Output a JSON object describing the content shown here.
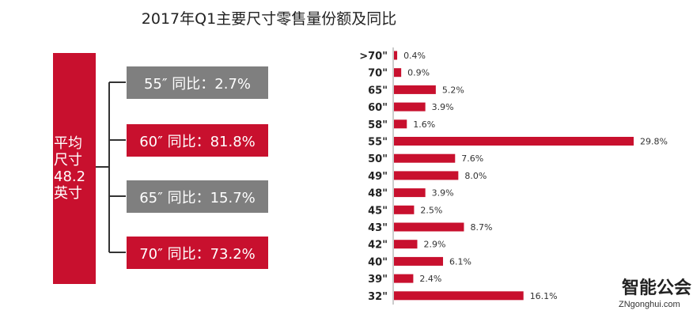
{
  "title": "2017年Q1主要尺寸零售量份额及同比",
  "average_box": {
    "lines": [
      "平均",
      "尺寸",
      "48.2",
      "英寸"
    ]
  },
  "yoy_items": [
    {
      "text": "55″  同比：2.7%",
      "color": "#7f7f7f"
    },
    {
      "text": "60″  同比：81.8%",
      "color": "#c8102e"
    },
    {
      "text": "65″  同比：15.7%",
      "color": "#7f7f7f"
    },
    {
      "text": "70″  同比：73.2%",
      "color": "#c8102e"
    }
  ],
  "chart_data": {
    "type": "bar",
    "orientation": "horizontal",
    "categories": [
      ">70\"",
      "70\"",
      "65\"",
      "60\"",
      "58\"",
      "55\"",
      "50\"",
      "49\"",
      "48\"",
      "45\"",
      "43\"",
      "42\"",
      "40\"",
      "39\"",
      "32\""
    ],
    "values": [
      0.4,
      0.9,
      5.2,
      3.9,
      1.6,
      29.8,
      7.6,
      8.0,
      3.9,
      2.5,
      8.7,
      2.9,
      6.1,
      2.4,
      16.1
    ],
    "value_labels": [
      "0.4%",
      "0.9%",
      "5.2%",
      "3.9%",
      "1.6%",
      "29.8%",
      "7.6%",
      "8.0%",
      "3.9%",
      "2.5%",
      "8.7%",
      "2.9%",
      "6.1%",
      "2.4%",
      "16.1%"
    ],
    "bar_color": "#c8102e",
    "grid": false,
    "xlabel": "",
    "ylabel": ""
  },
  "watermark": {
    "big": "智能公会",
    "small": "ZNgonghui.com"
  }
}
